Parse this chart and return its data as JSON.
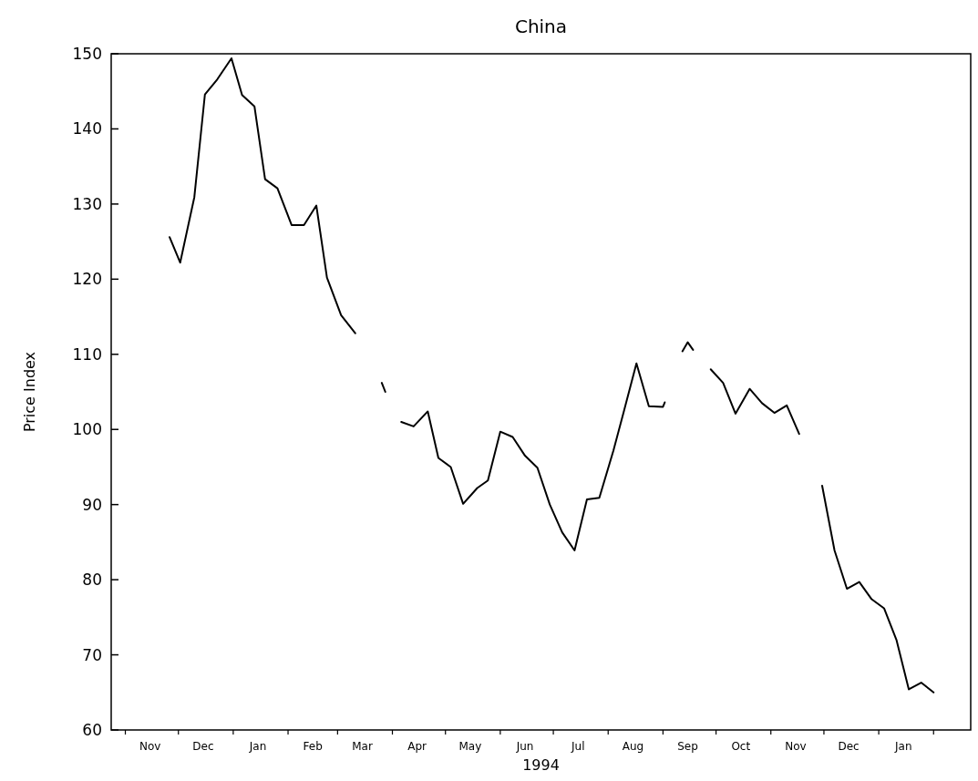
{
  "chart_data": {
    "type": "line",
    "title": "China",
    "xlabel": "1994",
    "ylabel": "Price Index",
    "x": [
      "1993-11-26",
      "1993-12-02",
      "1993-12-10",
      "1993-12-16",
      "1993-12-23",
      "1993-12-31",
      "1994-01-06",
      "1994-01-13",
      "1994-01-19",
      "1994-01-26",
      "1994-02-03",
      "1994-02-10",
      "1994-02-17",
      "1994-02-23",
      "1994-03-03",
      "1994-03-11",
      "1994-03-18",
      "1994-03-26",
      "1994-03-28",
      "1994-04-01",
      "1994-04-06",
      "1994-04-13",
      "1994-04-21",
      "1994-04-27",
      "1994-05-04",
      "1994-05-11",
      "1994-05-19",
      "1994-05-25",
      "1994-06-01",
      "1994-06-08",
      "1994-06-15",
      "1994-06-22",
      "1994-06-29",
      "1994-07-06",
      "1994-07-13",
      "1994-07-20",
      "1994-07-27",
      "1994-08-04",
      "1994-08-10",
      "1994-08-17",
      "1994-08-24",
      "1994-09-01",
      "1994-09-02",
      "1994-09-07",
      "1994-09-12",
      "1994-09-15",
      "1994-09-18",
      "1994-09-22",
      "1994-09-28",
      "1994-10-05",
      "1994-10-12",
      "1994-10-20",
      "1994-10-27",
      "1994-11-03",
      "1994-11-10",
      "1994-11-17",
      "1994-11-24",
      "1994-11-30",
      "1994-12-07",
      "1994-12-14",
      "1994-12-21",
      "1994-12-28",
      "1995-01-04",
      "1995-01-11",
      "1995-01-18",
      "1995-01-25",
      "1995-02-01"
    ],
    "series": [
      {
        "color": "#000000",
        "values": [
          125.6,
          122.2,
          130.9,
          144.6,
          146.6,
          149.4,
          144.5,
          143.0,
          133.3,
          132.1,
          127.2,
          127.2,
          129.8,
          120.2,
          115.2,
          112.8,
          null,
          106.2,
          105.0,
          null,
          101.0,
          100.4,
          102.4,
          96.2,
          95.0,
          90.1,
          92.2,
          93.2,
          99.7,
          99.0,
          96.5,
          94.9,
          90.0,
          86.3,
          83.9,
          90.7,
          90.9,
          97.2,
          102.5,
          108.8,
          103.1,
          103.0,
          103.6,
          null,
          110.4,
          111.6,
          110.6,
          null,
          108.0,
          106.2,
          102.1,
          105.4,
          103.5,
          102.2,
          103.2,
          99.4,
          null,
          92.5,
          83.9,
          78.8,
          79.7,
          77.4,
          76.2,
          72.0,
          65.4,
          66.3,
          65.0
        ]
      }
    ],
    "xlim": [
      "1993-10-24",
      "1995-02-22"
    ],
    "xticks": [
      {
        "value": "1993-11-01",
        "label": null
      },
      {
        "value": "1993-11-15",
        "label": "Nov"
      },
      {
        "value": "1993-12-01",
        "label": null
      },
      {
        "value": "1993-12-15",
        "label": "Dec"
      },
      {
        "value": "1994-01-01",
        "label": null
      },
      {
        "value": "1994-01-15",
        "label": "Jan"
      },
      {
        "value": "1994-02-01",
        "label": null
      },
      {
        "value": "1994-02-15",
        "label": "Feb"
      },
      {
        "value": "1994-03-01",
        "label": null
      },
      {
        "value": "1994-03-15",
        "label": "Mar"
      },
      {
        "value": "1994-04-01",
        "label": null
      },
      {
        "value": "1994-04-15",
        "label": "Apr"
      },
      {
        "value": "1994-05-01",
        "label": null
      },
      {
        "value": "1994-05-15",
        "label": "May"
      },
      {
        "value": "1994-06-01",
        "label": null
      },
      {
        "value": "1994-06-15",
        "label": "Jun"
      },
      {
        "value": "1994-07-01",
        "label": null
      },
      {
        "value": "1994-07-15",
        "label": "Jul"
      },
      {
        "value": "1994-08-01",
        "label": null
      },
      {
        "value": "1994-08-15",
        "label": "Aug"
      },
      {
        "value": "1994-09-01",
        "label": null
      },
      {
        "value": "1994-09-15",
        "label": "Sep"
      },
      {
        "value": "1994-10-01",
        "label": null
      },
      {
        "value": "1994-10-15",
        "label": "Oct"
      },
      {
        "value": "1994-11-01",
        "label": null
      },
      {
        "value": "1994-11-15",
        "label": "Nov"
      },
      {
        "value": "1994-12-01",
        "label": null
      },
      {
        "value": "1994-12-15",
        "label": "Dec"
      },
      {
        "value": "1995-01-01",
        "label": null
      },
      {
        "value": "1995-01-15",
        "label": "Jan"
      },
      {
        "value": "1995-02-01",
        "label": null
      }
    ],
    "ylim": [
      60,
      150
    ],
    "yticks": [
      60,
      70,
      80,
      90,
      100,
      110,
      120,
      130,
      140,
      150
    ],
    "marker": "none",
    "line_style": "solid",
    "grid": false
  }
}
